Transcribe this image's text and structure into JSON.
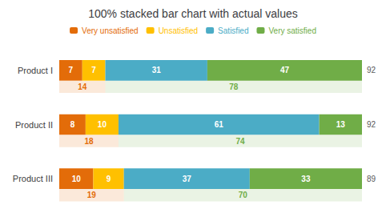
{
  "chart_data": {
    "type": "bar",
    "title": "100% stacked bar chart with actual values",
    "orientation": "horizontal",
    "stacked": true,
    "data_labels": true,
    "legend": "top",
    "grid": false,
    "tick_labels": "y",
    "categories": [
      "Product I",
      "Product II",
      "Product III"
    ],
    "series": [
      {
        "name": "Very unsatisfied",
        "color": "#E36C09",
        "values": [
          7,
          8,
          10
        ]
      },
      {
        "name": "Unsatisfied",
        "color": "#FFC000",
        "values": [
          7,
          10,
          9
        ]
      },
      {
        "name": "Satisfied",
        "color": "#4BACC6",
        "values": [
          31,
          61,
          37
        ]
      },
      {
        "name": "Very satisfied",
        "color": "#70AD47",
        "values": [
          47,
          13,
          33
        ]
      }
    ],
    "totals": [
      92,
      92,
      89
    ],
    "subtotals_left": [
      14,
      18,
      19
    ],
    "subtotals_right": [
      78,
      74,
      70
    ]
  }
}
